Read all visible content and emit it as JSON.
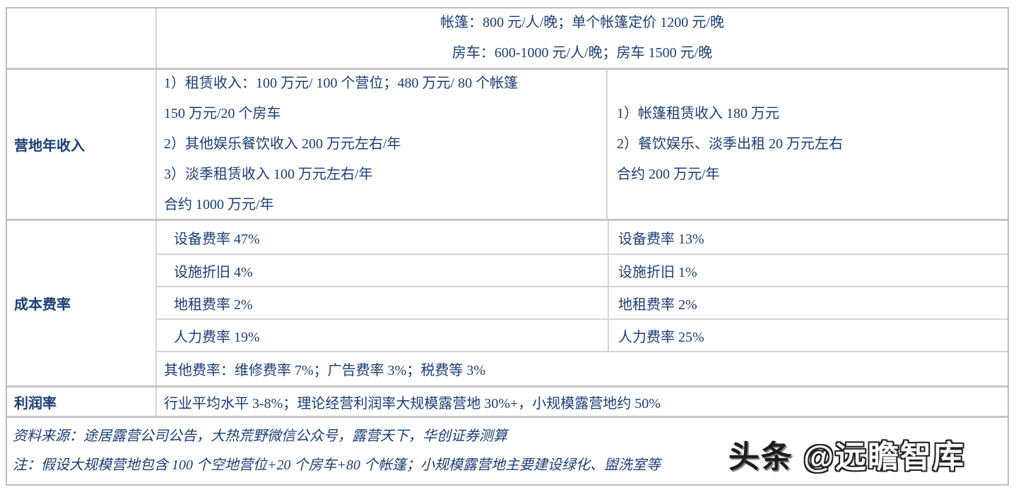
{
  "colors": {
    "text": "#1a3e73",
    "border": "#c6c6c6"
  },
  "table": {
    "header": {
      "line1": "帐篷：800 元/人/晚；单个帐篷定价 1200 元/晚",
      "line2": "房车：600-1000 元/人/晚；房车 1500 元/晚"
    },
    "revenue": {
      "label": "营地年收入",
      "large_lines": [
        "1）租赁收入：100 万元/ 100 个营位；480 万元/ 80 个帐篷",
        "150 万元/20 个房车",
        "2）其他娱乐餐饮收入 200 万元左右/年",
        "3）淡季租赁收入 100 万元左右/年",
        "合约 1000 万元/年"
      ],
      "small_lines": [
        "1）帐篷租赁收入 180 万元",
        "2）餐饮娱乐、淡季出租 20 万元左右",
        "合约 200 万元/年"
      ]
    },
    "cost": {
      "label": "成本费率",
      "rows": [
        {
          "large": "设备费率 47%",
          "small": "设备费率 13%"
        },
        {
          "large": "设施折旧 4%",
          "small": "设施折旧 1%"
        },
        {
          "large": "地租费率 2%",
          "small": "地租费率 2%"
        },
        {
          "large": "人力费率 19%",
          "small": "人力费率 25%"
        }
      ],
      "other": "其他费率：维修费率 7%；广告费率 3%；税费等 3%"
    },
    "profit": {
      "label": "利润率",
      "value": "行业平均水平 3-8%；理论经营利润率大规模露营地 30%+，小规模露营地约 50%"
    },
    "notes": {
      "source": "资料来源：途居露营公司公告，大热荒野微信公众号，露营天下，华创证券测算",
      "note": "注：假设大规模营地包含 100 个空地营位+20 个房车+80 个帐篷；小规模露营地主要建设绿化、盥洗室等"
    }
  },
  "watermark": {
    "prefix": "头条 ",
    "handle": "@远瞻智库"
  }
}
